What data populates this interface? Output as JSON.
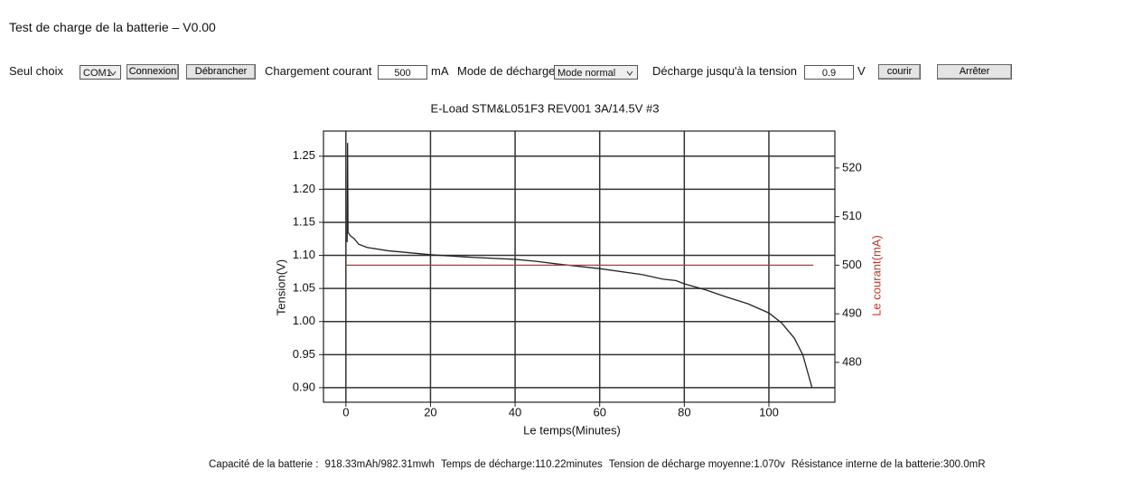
{
  "header": {
    "title": "Test de charge de la batterie – V0.00"
  },
  "controls": {
    "port_label": "Seul choix",
    "port": "COM1",
    "connect": "Connexion",
    "disconnect": "Débrancher",
    "charge_label": "Chargement courant",
    "charge_value": "500",
    "charge_unit": "mA",
    "mode_label": "Mode de décharge",
    "mode": "Mode normal",
    "cutoff_label": "Décharge jusqu'à la tension",
    "cutoff_value": "0.9",
    "cutoff_unit": "V",
    "run": "courir",
    "stop": "Arrêter"
  },
  "chart_data": {
    "type": "line",
    "title": "E-Load STM&L051F3 REV001 3A/14.5V #3",
    "xlabel": "Le temps(Minutes)",
    "ylabel": "Tension(V)",
    "y2label": "Le courant(mA)",
    "xlim": [
      -5.3,
      115.6
    ],
    "xticks": [
      0,
      20,
      40,
      60,
      80,
      100
    ],
    "ylim": [
      0.878,
      1.288
    ],
    "yticks": [
      {
        "value": 0.9,
        "label": "0.90"
      },
      {
        "value": 0.95,
        "label": "0.95"
      },
      {
        "value": 1.0,
        "label": "1.00"
      },
      {
        "value": 1.05,
        "label": "1.05"
      },
      {
        "value": 1.1,
        "label": "1.10"
      },
      {
        "value": 1.15,
        "label": "1.15"
      },
      {
        "value": 1.2,
        "label": "1.20"
      },
      {
        "value": 1.25,
        "label": "1.25"
      }
    ],
    "y2lim": [
      471.8,
      527.6
    ],
    "y2ticks": [
      480,
      490,
      500,
      510,
      520
    ],
    "grid": true,
    "series": [
      {
        "color": "#222222",
        "x": [
          0.3,
          0.4,
          0.5,
          1,
          2,
          3,
          5,
          10,
          20,
          30,
          40,
          45,
          50,
          60,
          70,
          75,
          78,
          80,
          85,
          90,
          95,
          100,
          103,
          106,
          108,
          110.2
        ],
        "values": [
          1.12,
          1.27,
          1.135,
          1.13,
          1.125,
          1.117,
          1.112,
          1.107,
          1.101,
          1.097,
          1.094,
          1.091,
          1.087,
          1.08,
          1.071,
          1.064,
          1.062,
          1.057,
          1.048,
          1.037,
          1.027,
          1.013,
          0.998,
          0.975,
          0.95,
          0.9
        ]
      },
      {
        "color": "#c0392b",
        "axis": "y2",
        "x": [
          0,
          110.5
        ],
        "values": [
          500,
          500
        ]
      }
    ]
  },
  "footer": {
    "items": [
      "Capacité de la batterie :",
      "918.33mAh/982.31mwh",
      "Temps de décharge:110.22minutes",
      "Tension de décharge moyenne:1.070v",
      "Résistance interne de la batterie:300.0mR"
    ]
  }
}
